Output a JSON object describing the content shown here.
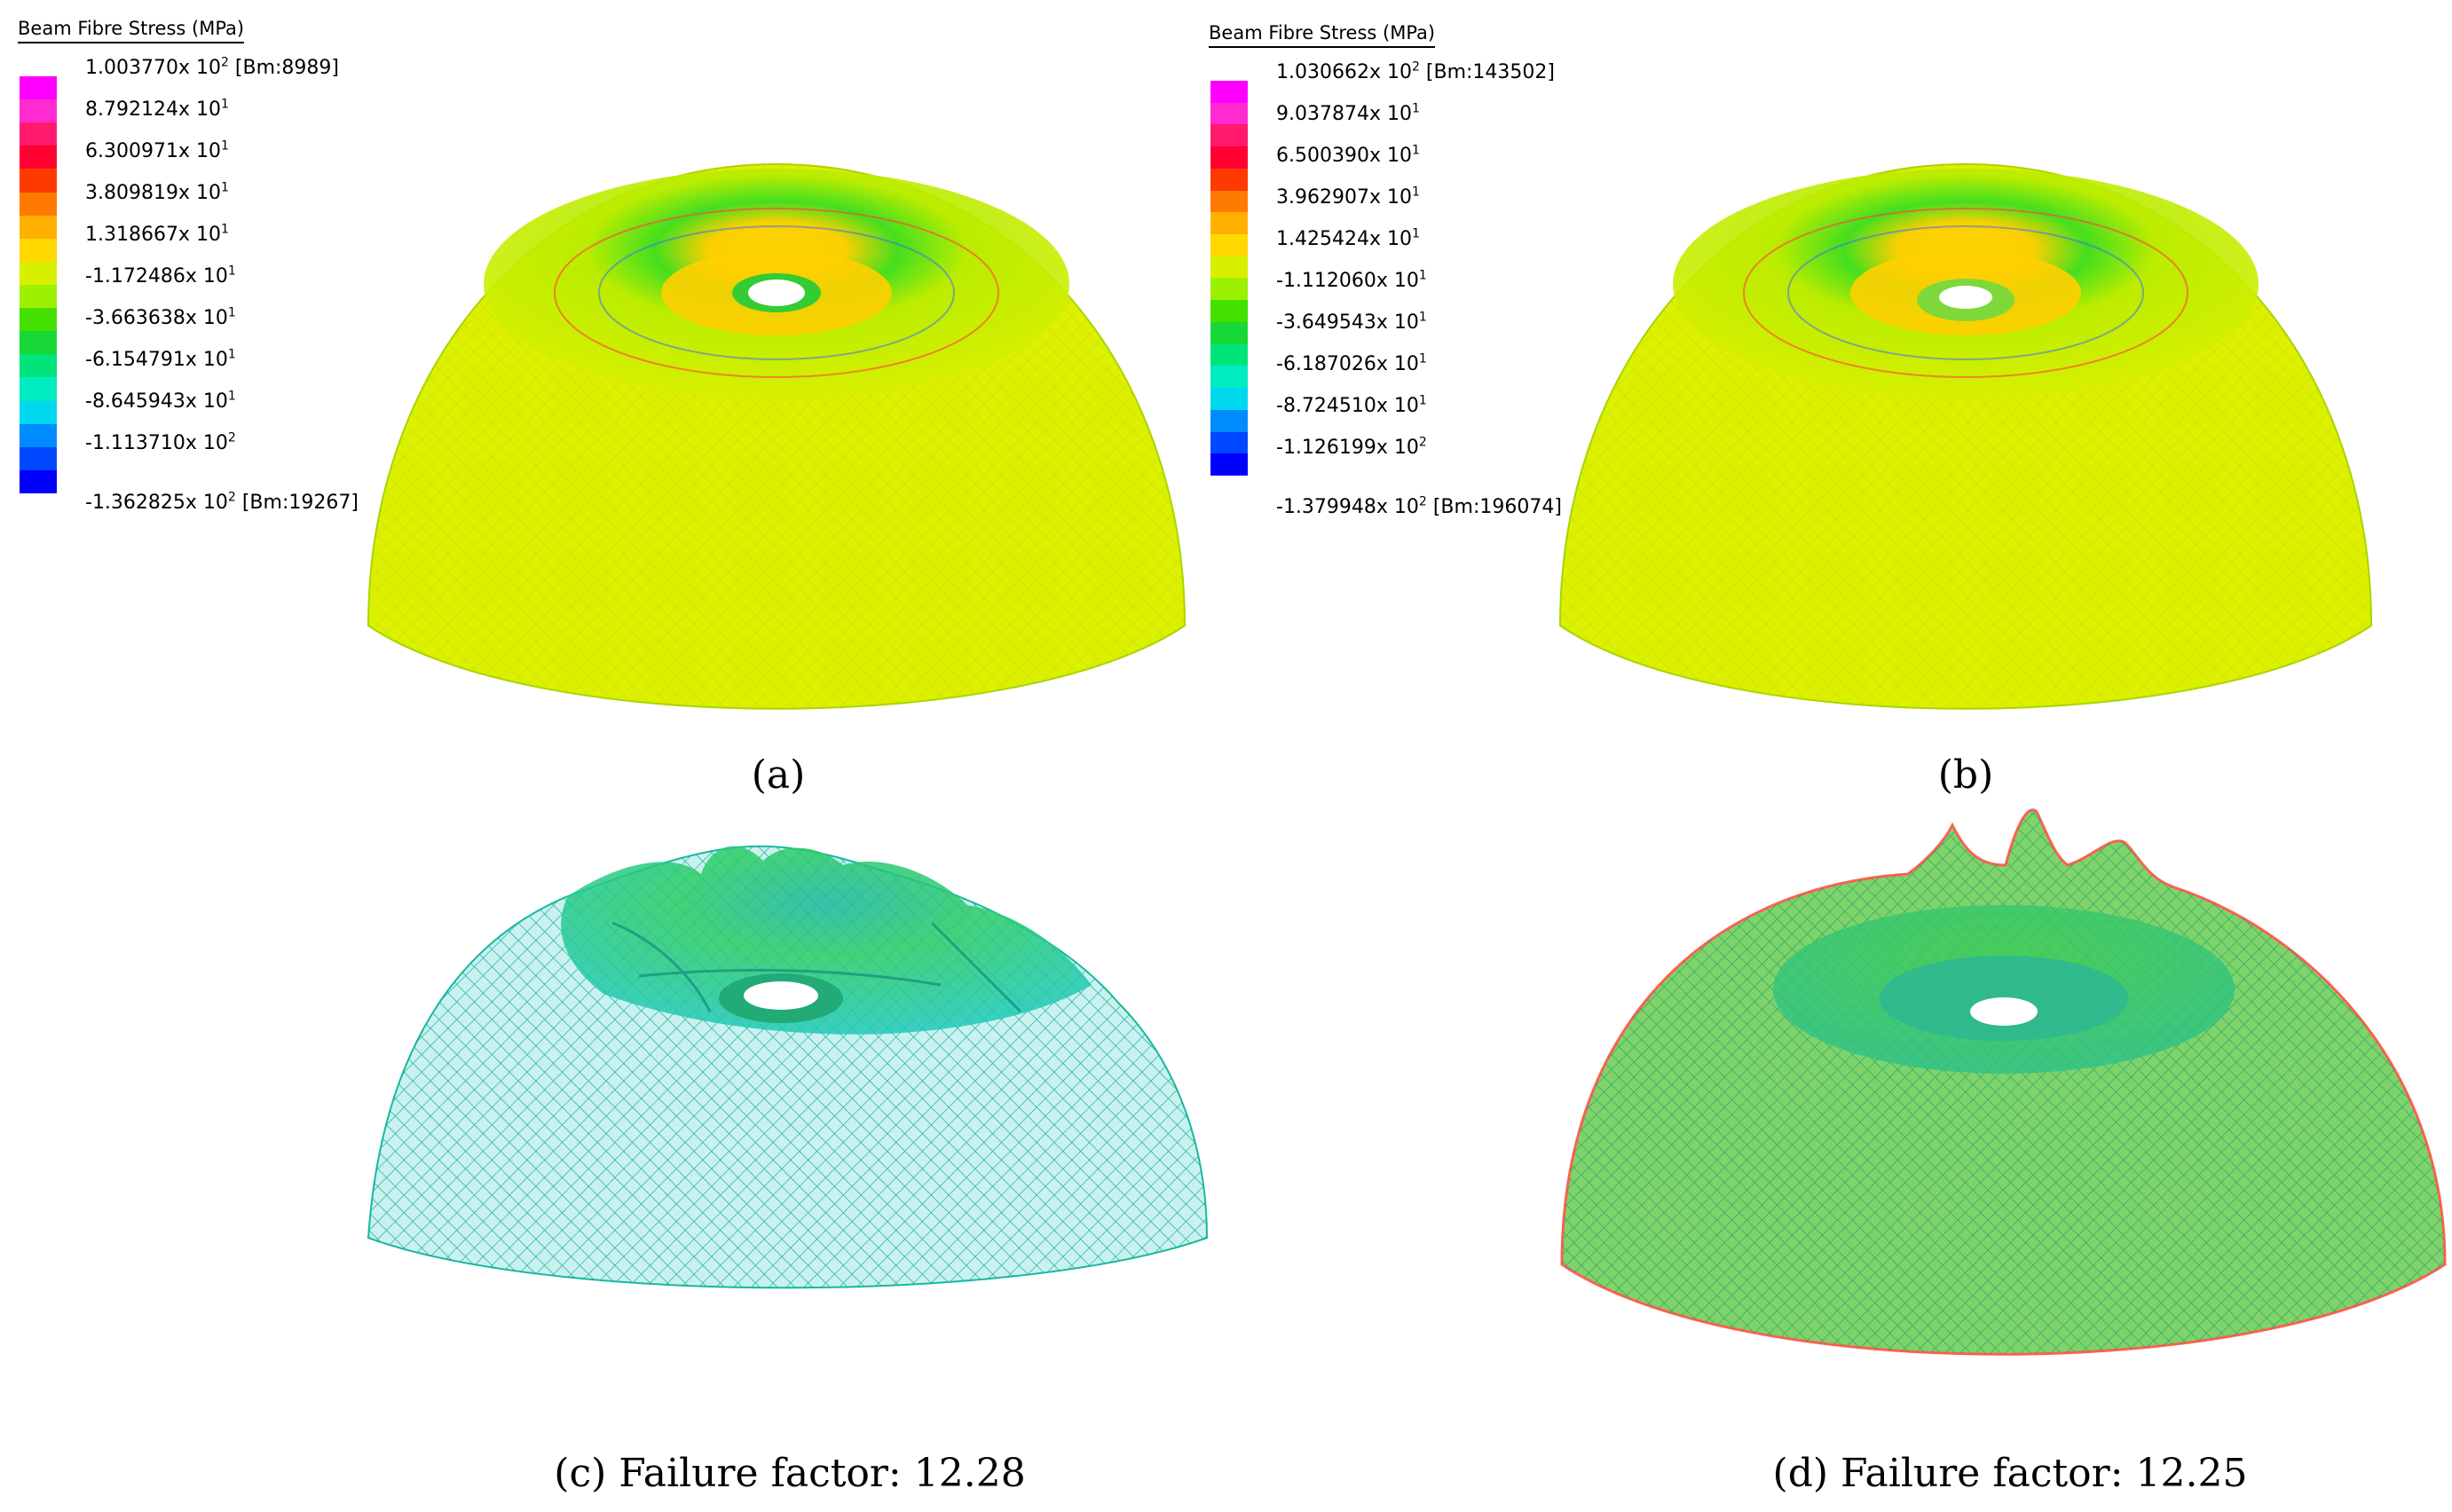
{
  "legend_title": "Beam Fibre Stress  (MPa)",
  "legend_colors": [
    "#ff00ff",
    "#ff2bd0",
    "#ff1a6e",
    "#ff0030",
    "#ff3a00",
    "#ff7a00",
    "#ffb000",
    "#ffd800",
    "#d8f000",
    "#9cf000",
    "#44e000",
    "#18d838",
    "#00e47a",
    "#00ecc0",
    "#00d8f0",
    "#008cff",
    "#0048ff",
    "#0000ff"
  ],
  "legend_a": {
    "max": {
      "mant": "1.003770x 10",
      "exp": "2",
      "tag": "[Bm:8989]"
    },
    "mids": [
      {
        "mant": "8.792124x 10",
        "exp": "1"
      },
      {
        "mant": "6.300971x 10",
        "exp": "1"
      },
      {
        "mant": "3.809819x 10",
        "exp": "1"
      },
      {
        "mant": "1.318667x 10",
        "exp": "1"
      },
      {
        "mant": "-1.172486x 10",
        "exp": "1"
      },
      {
        "mant": "-3.663638x 10",
        "exp": "1"
      },
      {
        "mant": "-6.154791x 10",
        "exp": "1"
      },
      {
        "mant": "-8.645943x 10",
        "exp": "1"
      },
      {
        "mant": "-1.113710x 10",
        "exp": "2"
      }
    ],
    "min": {
      "mant": "-1.362825x 10",
      "exp": "2",
      "tag": "[Bm:19267]"
    }
  },
  "legend_b": {
    "max": {
      "mant": "1.030662x 10",
      "exp": "2",
      "tag": "[Bm:143502]"
    },
    "mids": [
      {
        "mant": "9.037874x 10",
        "exp": "1"
      },
      {
        "mant": "6.500390x 10",
        "exp": "1"
      },
      {
        "mant": "3.962907x 10",
        "exp": "1"
      },
      {
        "mant": "1.425424x 10",
        "exp": "1"
      },
      {
        "mant": "-1.112060x 10",
        "exp": "1"
      },
      {
        "mant": "-3.649543x 10",
        "exp": "1"
      },
      {
        "mant": "-6.187026x 10",
        "exp": "1"
      },
      {
        "mant": "-8.724510x 10",
        "exp": "1"
      },
      {
        "mant": "-1.126199x 10",
        "exp": "2"
      }
    ],
    "min": {
      "mant": "-1.379948x 10",
      "exp": "2",
      "tag": "[Bm:196074]"
    }
  },
  "captions": {
    "a": "(a)",
    "b": "(b)",
    "c": "(c) Failure factor:  12.28",
    "d": "(d) Failure factor:  12.25"
  }
}
